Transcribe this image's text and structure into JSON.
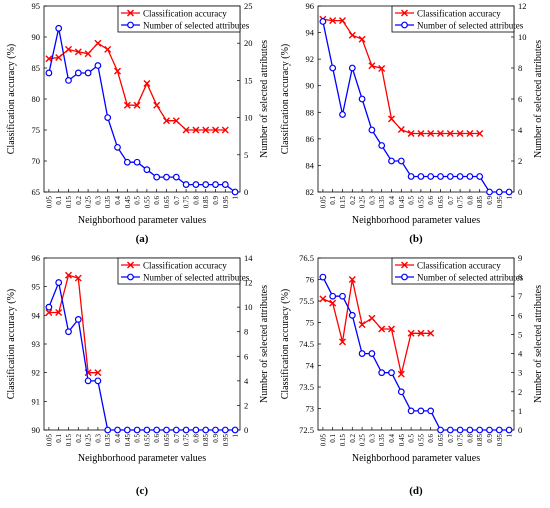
{
  "figure": {
    "panels": [
      {
        "label": "(a)"
      },
      {
        "label": "(b)"
      },
      {
        "label": "(c)"
      },
      {
        "label": "(d)"
      }
    ]
  },
  "chart_data": [
    {
      "type": "line",
      "panel_label": "(a)",
      "xlabel": "Neighborhood parameter values",
      "ylabel_left": "Classification accuracy (%)",
      "ylabel_right": "Number of selected attributes",
      "x": [
        "0.05",
        "0.1",
        "0.15",
        "0.2",
        "0.25",
        "0.3",
        "0.35",
        "0.4",
        "0.45",
        "0.5",
        "0.55",
        "0.6",
        "0.65",
        "0.7",
        "0.75",
        "0.8",
        "0.85",
        "0.9",
        "0.95",
        "1"
      ],
      "ylim_left": [
        65,
        95
      ],
      "yticks_left": [
        65,
        70,
        75,
        80,
        85,
        90,
        95
      ],
      "ylim_right": [
        0,
        25
      ],
      "yticks_right": [
        0,
        5,
        10,
        15,
        20,
        25
      ],
      "legend": [
        "Classification accuracy",
        "Number of selected attributes"
      ],
      "legend_position": "top-right",
      "series": [
        {
          "name": "Classification accuracy",
          "axis": "left",
          "color": "#ff0000",
          "marker": "x",
          "values": [
            86.5,
            86.7,
            88.0,
            87.6,
            87.3,
            89.0,
            88.0,
            84.5,
            79.0,
            79.0,
            82.5,
            79.0,
            76.5,
            76.5,
            75.0,
            75.0,
            75.0,
            75.0,
            75.0,
            null
          ]
        },
        {
          "name": "Number of selected attributes",
          "axis": "right",
          "color": "#0000ff",
          "marker": "o",
          "values": [
            16,
            22,
            15,
            16,
            16,
            17,
            10,
            6,
            4,
            4,
            3,
            2,
            2,
            2,
            1,
            1,
            1,
            1,
            1,
            0
          ]
        }
      ]
    },
    {
      "type": "line",
      "panel_label": "(b)",
      "xlabel": "Neighborhood parameter values",
      "ylabel_left": "Classification accuracy (%)",
      "ylabel_right": "Number of selected attributes",
      "x": [
        "0.05",
        "0.1",
        "0.15",
        "0.2",
        "0.25",
        "0.3",
        "0.35",
        "0.4",
        "0.45",
        "0.5",
        "0.55",
        "0.6",
        "0.65",
        "0.7",
        "0.75",
        "0.8",
        "0.85",
        "0.9",
        "0.95",
        "1"
      ],
      "ylim_left": [
        82,
        96
      ],
      "yticks_left": [
        82,
        84,
        86,
        88,
        90,
        92,
        94,
        96
      ],
      "ylim_right": [
        0,
        12
      ],
      "yticks_right": [
        0,
        2,
        4,
        6,
        8,
        10,
        12
      ],
      "legend": [
        "Classification accuracy",
        "Number of selected attributes"
      ],
      "legend_position": "top-right",
      "series": [
        {
          "name": "Classification accuracy",
          "axis": "left",
          "color": "#ff0000",
          "marker": "x",
          "values": [
            95.0,
            94.9,
            94.9,
            93.8,
            93.5,
            91.5,
            91.3,
            87.5,
            86.7,
            86.4,
            86.4,
            86.4,
            86.4,
            86.4,
            86.4,
            86.4,
            86.4,
            null,
            null,
            null
          ]
        },
        {
          "name": "Number of selected attributes",
          "axis": "right",
          "color": "#0000ff",
          "marker": "o",
          "values": [
            11,
            8,
            5,
            8,
            6,
            4,
            3,
            2,
            2,
            1,
            1,
            1,
            1,
            1,
            1,
            1,
            1,
            0,
            0,
            0
          ]
        }
      ]
    },
    {
      "type": "line",
      "panel_label": "(c)",
      "xlabel": "Neighborhood parameter values",
      "ylabel_left": "Classification accuracy (%)",
      "ylabel_right": "Number of selected attributes",
      "x": [
        "0.05",
        "0.1",
        "0.15",
        "0.2",
        "0.25",
        "0.3",
        "0.35",
        "0.4",
        "0.45",
        "0.5",
        "0.55",
        "0.6",
        "0.65",
        "0.7",
        "0.75",
        "0.8",
        "0.85",
        "0.9",
        "0.95",
        "1"
      ],
      "ylim_left": [
        90,
        96
      ],
      "yticks_left": [
        90,
        91,
        92,
        93,
        94,
        95,
        96
      ],
      "ylim_right": [
        0,
        14
      ],
      "yticks_right": [
        0,
        2,
        4,
        6,
        8,
        10,
        12,
        14
      ],
      "legend": [
        "Classification accuracy",
        "Number of selected attributes"
      ],
      "legend_position": "top-right",
      "series": [
        {
          "name": "Classification accuracy",
          "axis": "left",
          "color": "#ff0000",
          "marker": "x",
          "values": [
            94.1,
            94.1,
            95.4,
            95.3,
            92.0,
            92.0,
            null,
            null,
            null,
            null,
            null,
            null,
            null,
            null,
            null,
            null,
            null,
            null,
            null,
            null
          ]
        },
        {
          "name": "Number of selected attributes",
          "axis": "right",
          "color": "#0000ff",
          "marker": "o",
          "values": [
            10,
            12,
            8,
            9,
            4,
            4,
            0,
            0,
            0,
            0,
            0,
            0,
            0,
            0,
            0,
            0,
            0,
            0,
            0,
            0
          ]
        }
      ]
    },
    {
      "type": "line",
      "panel_label": "(d)",
      "xlabel": "Neighborhood parameter values",
      "ylabel_left": "Classification accuracy (%)",
      "ylabel_right": "Number of selected attributes",
      "x": [
        "0.05",
        "0.1",
        "0.15",
        "0.2",
        "0.25",
        "0.3",
        "0.35",
        "0.4",
        "0.45",
        "0.5",
        "0.55",
        "0.6",
        "0.65",
        "0.7",
        "0.75",
        "0.8",
        "0.85",
        "0.9",
        "0.95",
        "1"
      ],
      "ylim_left": [
        72.5,
        76.5
      ],
      "yticks_left": [
        72.5,
        73,
        73.5,
        74,
        74.5,
        75,
        75.5,
        76,
        76.5
      ],
      "ylim_right": [
        0,
        9
      ],
      "yticks_right": [
        0,
        1,
        2,
        3,
        4,
        5,
        6,
        7,
        8,
        9
      ],
      "legend": [
        "Classification accuracy",
        "Number of selected attributes"
      ],
      "legend_position": "top-right",
      "series": [
        {
          "name": "Classification accuracy",
          "axis": "left",
          "color": "#ff0000",
          "marker": "x",
          "values": [
            75.55,
            75.45,
            74.55,
            76.0,
            74.95,
            75.1,
            74.85,
            74.85,
            73.8,
            74.75,
            74.75,
            74.75,
            null,
            null,
            null,
            null,
            null,
            null,
            null,
            null
          ]
        },
        {
          "name": "Number of selected attributes",
          "axis": "right",
          "color": "#0000ff",
          "marker": "o",
          "values": [
            8,
            7,
            7,
            6,
            4,
            4,
            3,
            3,
            2,
            1,
            1,
            1,
            0,
            0,
            0,
            0,
            0,
            0,
            0,
            0
          ]
        }
      ]
    }
  ]
}
